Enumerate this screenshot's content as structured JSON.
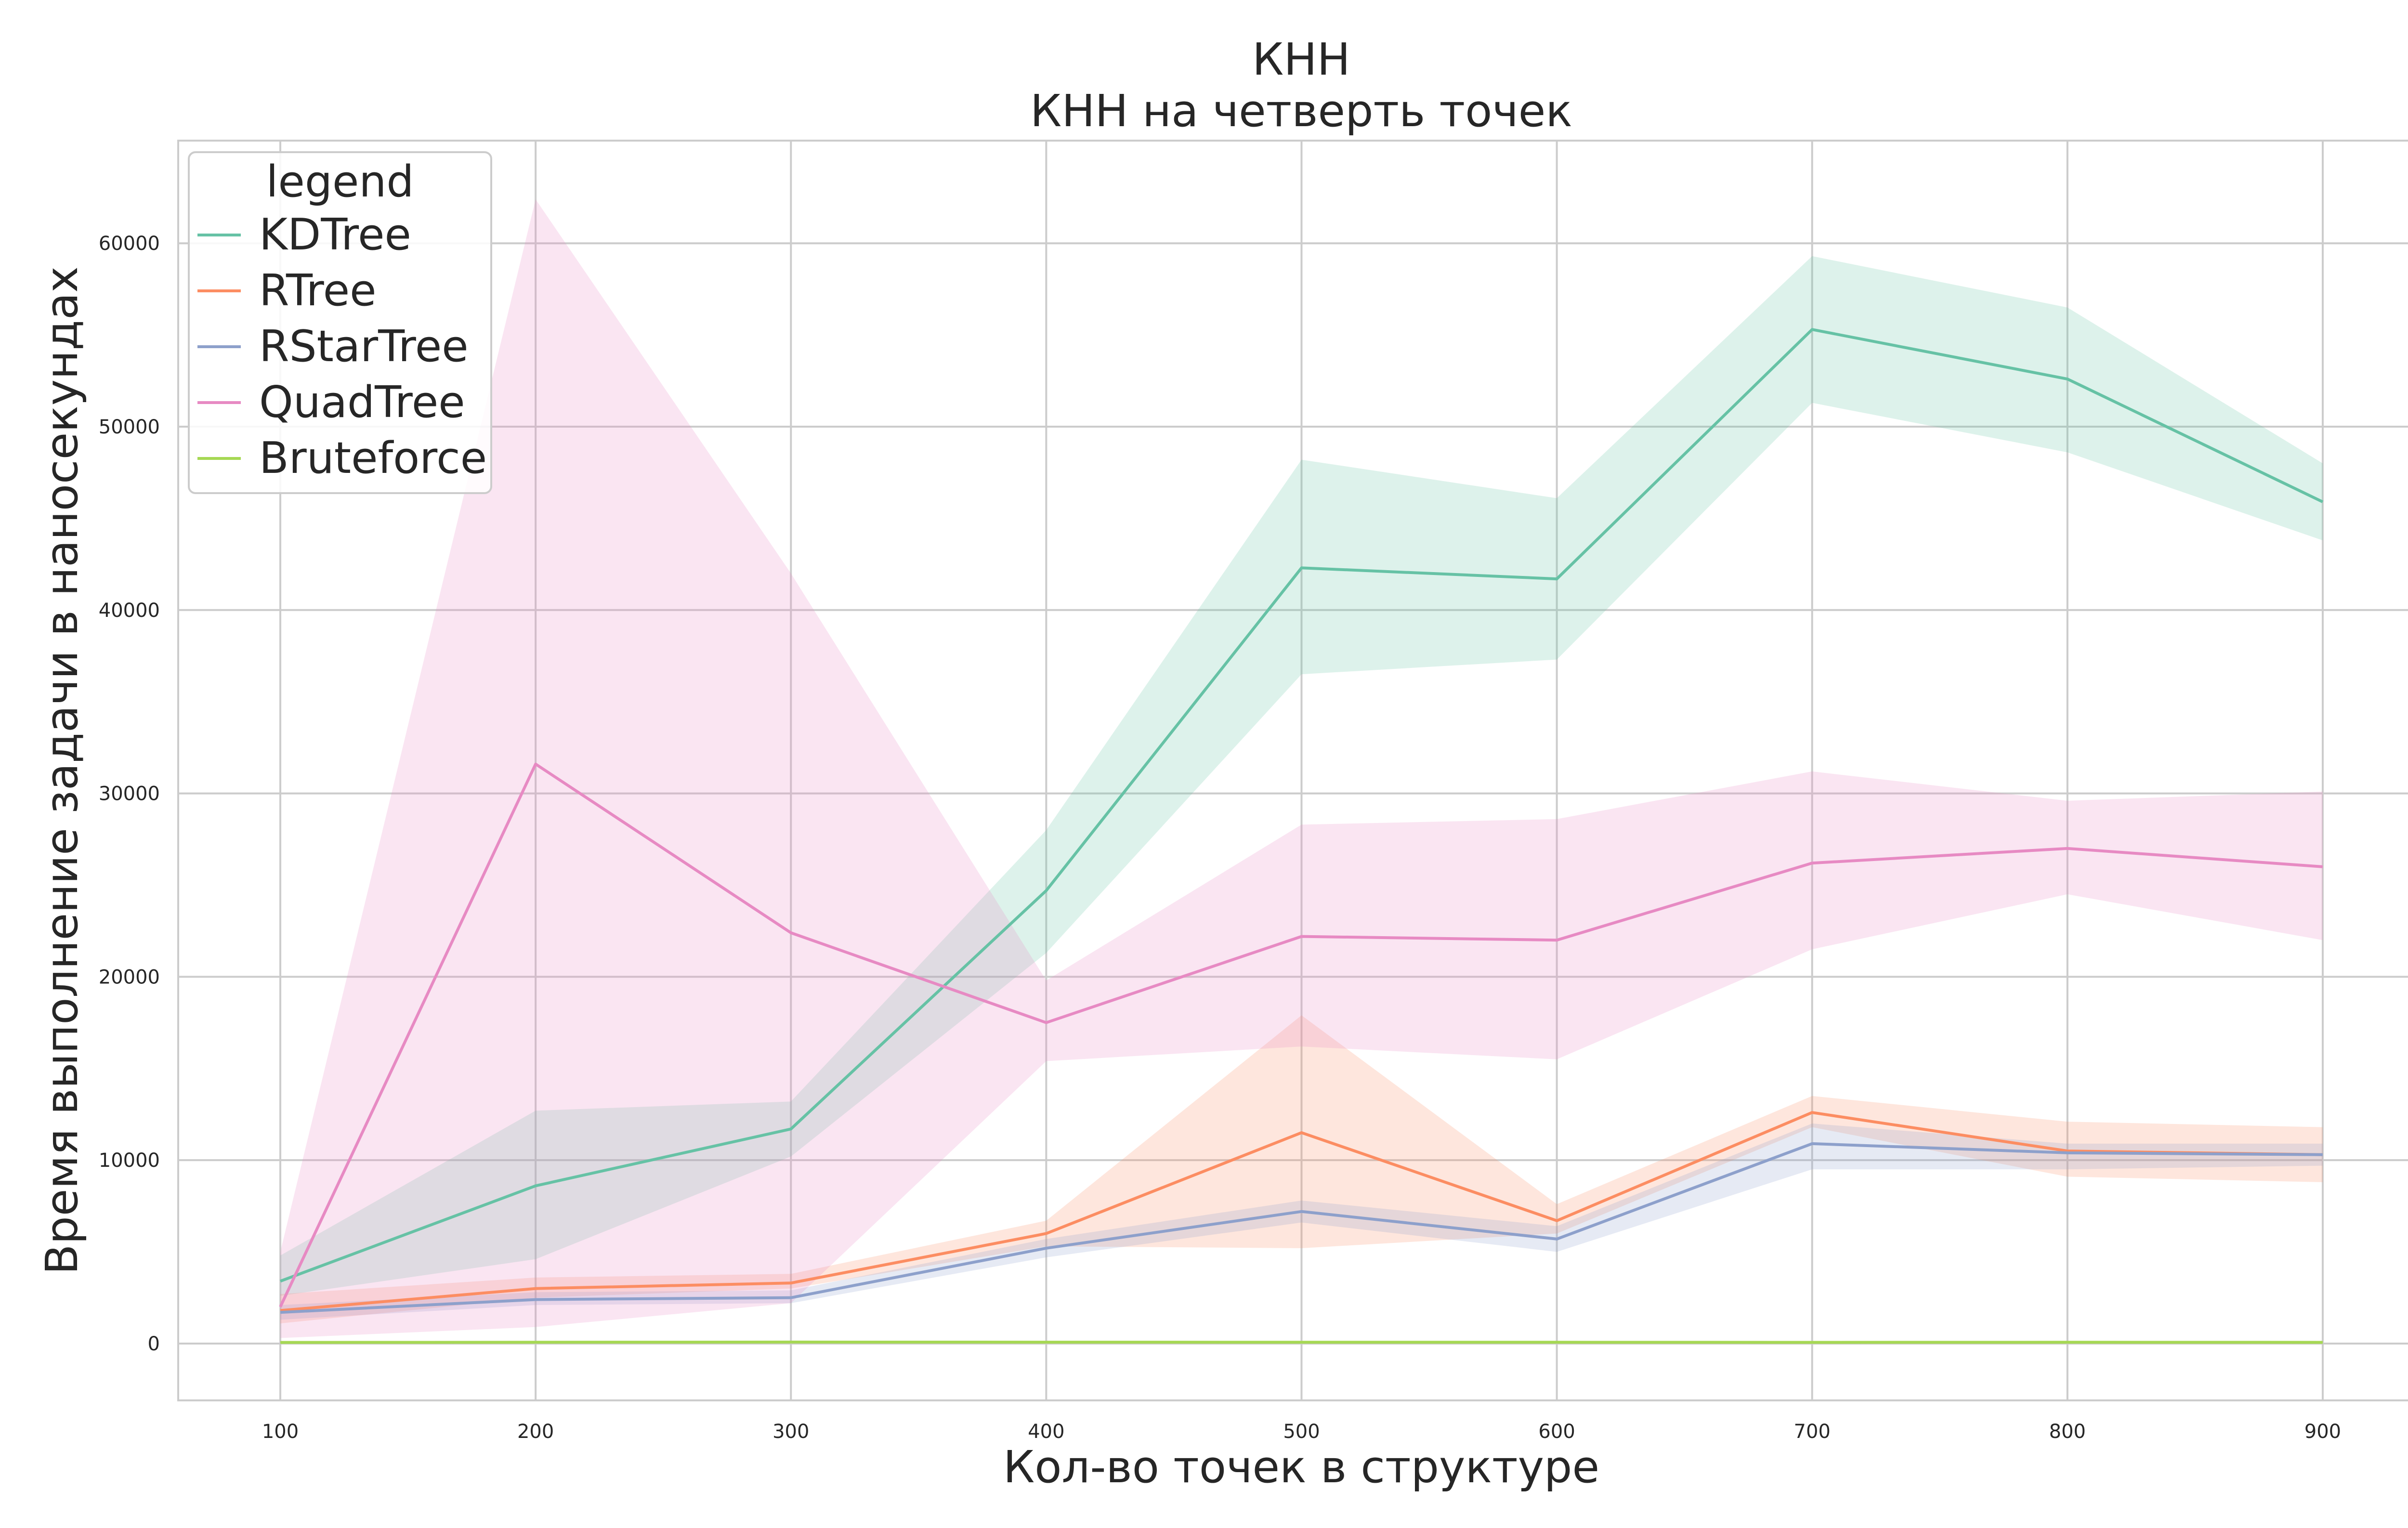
{
  "chart_data": {
    "type": "line",
    "title": "КНН",
    "subtitle": "КНН на четверть точек",
    "xlabel": "Кол-во точек в структуре",
    "ylabel": "Время выполнение задачи в наносекундах",
    "x": [
      100,
      200,
      300,
      400,
      500,
      600,
      700,
      800,
      900
    ],
    "xlim": [
      60,
      940
    ],
    "ylim": [
      -3100,
      65600
    ],
    "x_ticks": [
      100,
      200,
      300,
      400,
      500,
      600,
      700,
      800,
      900
    ],
    "y_ticks": [
      0,
      10000,
      20000,
      30000,
      40000,
      50000,
      60000
    ],
    "grid": true,
    "legend": {
      "title": "legend",
      "placement": "top-left"
    },
    "series": [
      {
        "name": "KDTree",
        "color": "#66c2a5",
        "values": [
          3400,
          8600,
          11700,
          24700,
          42300,
          41700,
          55300,
          52600,
          45900
        ],
        "ci_low": [
          2600,
          4600,
          10200,
          21300,
          36500,
          37300,
          51300,
          48600,
          43800
        ],
        "ci_high": [
          4800,
          12700,
          13200,
          28000,
          48200,
          46100,
          59300,
          56500,
          48000
        ]
      },
      {
        "name": "RTree",
        "color": "#fc8d62",
        "values": [
          1800,
          3000,
          3300,
          6000,
          11500,
          6700,
          12600,
          10500,
          10300
        ],
        "ci_low": [
          1100,
          2500,
          3000,
          5300,
          5200,
          6000,
          11800,
          9100,
          8800
        ],
        "ci_high": [
          2700,
          3600,
          3800,
          6700,
          17900,
          7600,
          13500,
          12100,
          11800
        ]
      },
      {
        "name": "RStarTree",
        "color": "#8da0cb",
        "values": [
          1700,
          2400,
          2500,
          5200,
          7200,
          5700,
          10900,
          10400,
          10300
        ],
        "ci_low": [
          1300,
          2100,
          2200,
          4700,
          6600,
          5000,
          9500,
          9500,
          9700
        ],
        "ci_high": [
          2100,
          2800,
          2900,
          5700,
          7800,
          6400,
          12000,
          10900,
          10900
        ]
      },
      {
        "name": "QuadTree",
        "color": "#e78ac3",
        "values": [
          2000,
          31600,
          22400,
          17500,
          22200,
          22000,
          26200,
          27000,
          26000
        ],
        "ci_low": [
          300,
          900,
          2200,
          15400,
          16200,
          15500,
          21500,
          24500,
          22000
        ],
        "ci_high": [
          5000,
          62400,
          42000,
          19800,
          28300,
          28600,
          31200,
          29600,
          30100
        ]
      },
      {
        "name": "Bruteforce",
        "color": "#a6d854",
        "values": [
          60,
          70,
          80,
          75,
          70,
          70,
          65,
          70,
          65
        ],
        "ci_low": [
          40,
          50,
          60,
          55,
          50,
          50,
          45,
          50,
          45
        ],
        "ci_high": [
          80,
          90,
          100,
          95,
          90,
          90,
          85,
          90,
          85
        ]
      }
    ]
  }
}
